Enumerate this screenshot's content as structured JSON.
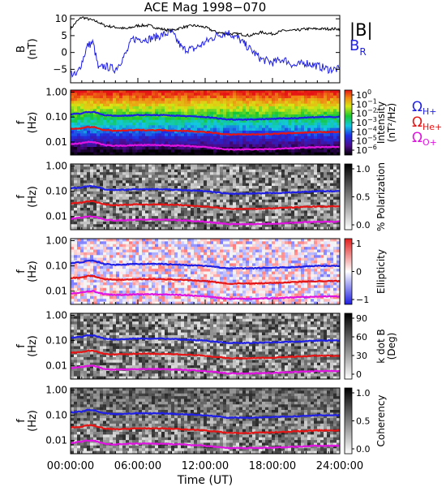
{
  "title": "ACE Mag 1998−070",
  "x_axis": {
    "label": "Time (UT)",
    "tick_labels": [
      "00:00:00",
      "06:00:00",
      "12:00:00",
      "18:00:00",
      "24:00:00"
    ],
    "range_hours": [
      0,
      24
    ]
  },
  "legend_top": {
    "total": "|B|",
    "radial": "B",
    "radial_sub": "R"
  },
  "legend_gyro": {
    "symbol": "Ω",
    "items": [
      {
        "sub": "H+",
        "color": "#1f1fe6"
      },
      {
        "sub": "He+",
        "color": "#e61515"
      },
      {
        "sub": "O+",
        "color": "#e014e0"
      }
    ]
  },
  "colors": {
    "total": "#000000",
    "radial": "#1f1fe6",
    "h": "#1f1fe6",
    "he": "#e61515",
    "o": "#e014e0"
  },
  "panels": [
    {
      "id": "field",
      "ylabel": [
        "B",
        "(nT)"
      ],
      "yticks": [
        "10",
        "5",
        "0",
        "−5"
      ],
      "ylim": [
        -9,
        11
      ]
    },
    {
      "id": "intensity",
      "ylabel": [
        "f",
        "(Hz)"
      ],
      "yticks": [
        "1.00",
        "0.10",
        "0.01"
      ],
      "colorbar": {
        "title": "Intensity",
        "unit": "(nT²/Hz)",
        "tick_labels": [
          [
            "10",
            "0"
          ],
          [
            "10",
            "−1"
          ],
          [
            "10",
            "−2"
          ],
          [
            "10",
            "−3"
          ],
          [
            "10",
            "−4"
          ],
          [
            "10",
            "−5"
          ],
          [
            "10",
            "−6"
          ]
        ]
      }
    },
    {
      "id": "polarization",
      "ylabel": [
        "f",
        "(Hz)"
      ],
      "yticks": [
        "1.00",
        "0.10",
        "0.01"
      ],
      "colorbar": {
        "title": "% Polarization",
        "unit": "",
        "tick_labels": [
          "1.0",
          "0.5",
          "0.0"
        ]
      }
    },
    {
      "id": "ellipticity",
      "ylabel": [
        "f",
        "(Hz)"
      ],
      "yticks": [
        "1.00",
        "0.10",
        "0.01"
      ],
      "colorbar": {
        "title": "Ellipticity",
        "unit": "",
        "tick_labels": [
          "1",
          "0",
          "−1"
        ]
      }
    },
    {
      "id": "kdotb",
      "ylabel": [
        "f",
        "(Hz)"
      ],
      "yticks": [
        "1.00",
        "0.10",
        "0.01"
      ],
      "colorbar": {
        "title": "k dot B",
        "unit": "(Deg)",
        "tick_labels": [
          "90",
          "60",
          "30",
          "0"
        ]
      }
    },
    {
      "id": "coherency",
      "ylabel": [
        "f",
        "(Hz)"
      ],
      "yticks": [
        "1.00",
        "0.10",
        "0.01"
      ],
      "colorbar": {
        "title": "Coherency",
        "unit": "",
        "tick_labels": [
          "1.0",
          "0.5",
          "0.0"
        ]
      }
    }
  ],
  "chart_data": {
    "type": "heatmap",
    "title": "ACE Mag 1998−070",
    "xlabel": "Time (UT)",
    "xlim_hours": [
      0,
      24
    ],
    "field_series": [
      {
        "name": "|B|",
        "unit": "nT",
        "x": [
          0,
          0.5,
          1,
          1.5,
          2,
          2.5,
          3,
          4,
          5,
          6,
          7,
          8,
          9,
          10,
          11,
          12,
          13,
          14,
          15,
          16,
          17,
          18,
          19,
          20,
          21,
          22,
          23,
          24
        ],
        "values": [
          7,
          9,
          10.5,
          10,
          9.5,
          9,
          8,
          7.5,
          7,
          8,
          8,
          7,
          6.5,
          7.5,
          8,
          7.5,
          6,
          5.5,
          5.5,
          5,
          6,
          5.5,
          6.5,
          6.5,
          7,
          7,
          7,
          7
        ]
      },
      {
        "name": "B_R",
        "unit": "nT",
        "x": [
          0,
          0.5,
          1,
          1.5,
          2,
          2.5,
          3,
          4,
          5,
          5.5,
          6,
          7,
          8,
          9,
          10,
          11,
          12,
          13,
          14,
          15,
          16,
          17,
          18,
          19,
          20,
          21,
          22,
          23,
          24
        ],
        "values": [
          -6,
          -7,
          -3,
          2,
          3,
          -5,
          -4,
          -5,
          0,
          4,
          4,
          4,
          5,
          6,
          1,
          1,
          3,
          5,
          6,
          4,
          1,
          -2,
          -3,
          -2,
          -4,
          -3,
          -4,
          -5,
          -5
        ]
      }
    ],
    "gyrofrequency_series": [
      {
        "name": "ΩH+",
        "unit": "Hz",
        "x": [
          0,
          1,
          1.5,
          2,
          3,
          4,
          6,
          8,
          10,
          12,
          14,
          16,
          18,
          20,
          22,
          24
        ],
        "values": [
          0.13,
          0.14,
          0.16,
          0.16,
          0.12,
          0.11,
          0.12,
          0.12,
          0.11,
          0.1,
          0.08,
          0.08,
          0.085,
          0.09,
          0.1,
          0.1
        ]
      },
      {
        "name": "ΩHe+",
        "unit": "Hz",
        "x": [
          0,
          1,
          1.5,
          2,
          3,
          4,
          6,
          8,
          10,
          12,
          14,
          16,
          18,
          20,
          22,
          24
        ],
        "values": [
          0.033,
          0.035,
          0.04,
          0.04,
          0.03,
          0.028,
          0.03,
          0.03,
          0.028,
          0.025,
          0.02,
          0.02,
          0.021,
          0.023,
          0.025,
          0.025
        ]
      },
      {
        "name": "ΩO+",
        "unit": "Hz",
        "x": [
          0,
          1,
          1.5,
          2,
          3,
          4,
          6,
          8,
          10,
          12,
          14,
          16,
          18,
          20,
          22,
          24
        ],
        "values": [
          0.008,
          0.009,
          0.01,
          0.01,
          0.0075,
          0.007,
          0.0075,
          0.0075,
          0.007,
          0.0062,
          0.005,
          0.005,
          0.0052,
          0.0057,
          0.0062,
          0.0062
        ]
      }
    ],
    "frequency_ylim_hz": [
      0.003,
      1.2
    ]
  }
}
